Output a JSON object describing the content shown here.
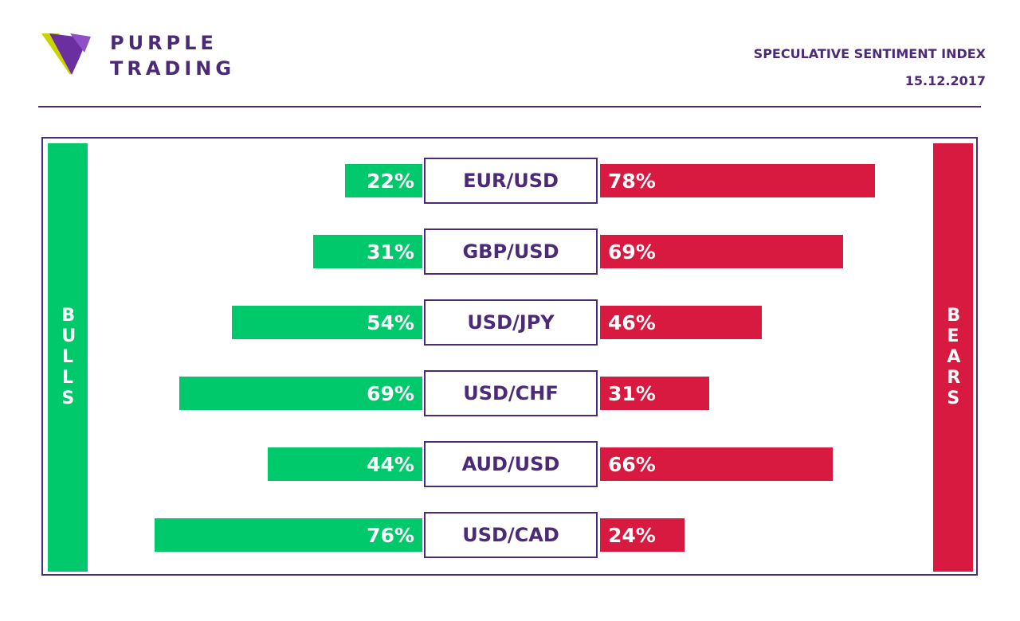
{
  "brand": {
    "line1": "PURPLE",
    "line2": "TRADING",
    "logo_icon": "purple-trading-leaf-logo"
  },
  "header": {
    "title": "SPECULATIVE SENTIMENT INDEX",
    "date": "15.12.2017"
  },
  "colors": {
    "purple": "#4b2a78",
    "bull_green": "#00c96b",
    "bear_red": "#d81a40",
    "logo_yellow": "#c8d400"
  },
  "chart_data": {
    "type": "bar",
    "orientation": "horizontal-diverging",
    "categories": [
      "EUR/USD",
      "GBP/USD",
      "USD/JPY",
      "USD/CHF",
      "AUD/USD",
      "USD/CAD"
    ],
    "series": [
      {
        "name": "BULLS",
        "values": [
          22,
          31,
          54,
          69,
          44,
          76
        ],
        "color": "#00c96b"
      },
      {
        "name": "BEARS",
        "values": [
          78,
          69,
          46,
          31,
          66,
          24
        ],
        "color": "#d81a40"
      }
    ],
    "value_suffix": "%",
    "xlim": [
      0,
      100
    ]
  }
}
